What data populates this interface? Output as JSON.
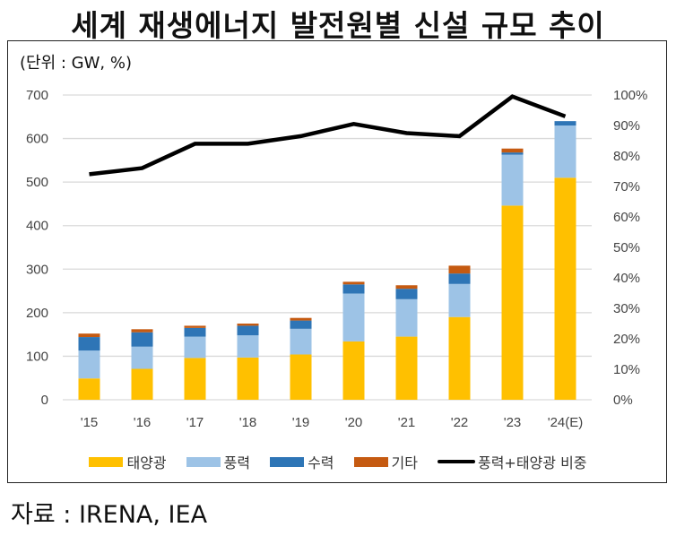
{
  "title": "세계 재생에너지 발전원별 신설 규모 추이",
  "unit_label": "(단위 : GW, %)",
  "source": "자료 : IRENA, IEA",
  "colors": {
    "solar": "#FFC000",
    "wind": "#9DC3E6",
    "hydro": "#2E75B6",
    "other": "#C55A11",
    "line": "#000000",
    "grid": "#D9D9D9"
  },
  "legend": [
    {
      "key": "solar",
      "label": "태양광"
    },
    {
      "key": "wind",
      "label": "풍력"
    },
    {
      "key": "hydro",
      "label": "수력"
    },
    {
      "key": "other",
      "label": "기타"
    },
    {
      "key": "line",
      "label": "풍력+태양광 비중"
    }
  ],
  "chart_data": {
    "type": "bar",
    "subtype": "stacked-bar-with-line",
    "title": "세계 재생에너지 발전원별 신설 규모 추이",
    "categories": [
      "'15",
      "'16",
      "'17",
      "'18",
      "'19",
      "'20",
      "'21",
      "'22",
      "'23",
      "'24(E)"
    ],
    "series": [
      {
        "name": "태양광",
        "key": "solar",
        "axis": "left",
        "values": [
          49,
          71,
          96,
          97,
          104,
          134,
          145,
          190,
          446,
          510
        ]
      },
      {
        "name": "풍력",
        "key": "wind",
        "axis": "left",
        "values": [
          64,
          51,
          49,
          51,
          59,
          110,
          86,
          76,
          117,
          120
        ]
      },
      {
        "name": "수력",
        "key": "hydro",
        "axis": "left",
        "values": [
          31,
          33,
          20,
          22,
          19,
          21,
          24,
          24,
          5,
          10
        ]
      },
      {
        "name": "기타",
        "key": "other",
        "axis": "left",
        "values": [
          8,
          7,
          5,
          5,
          6,
          6,
          8,
          18,
          9,
          0
        ]
      },
      {
        "name": "풍력+태양광 비중",
        "key": "line",
        "type": "line",
        "axis": "right",
        "values": [
          74,
          76,
          84,
          84,
          86.5,
          90.5,
          87.5,
          86.5,
          99.5,
          93
        ]
      }
    ],
    "left_axis": {
      "label": "GW",
      "ylim": [
        0,
        700
      ],
      "ticks": [
        0,
        100,
        200,
        300,
        400,
        500,
        600,
        700
      ]
    },
    "right_axis": {
      "label": "%",
      "ylim": [
        0,
        100
      ],
      "ticks": [
        "0%",
        "10%",
        "20%",
        "30%",
        "40%",
        "50%",
        "60%",
        "70%",
        "80%",
        "90%",
        "100%"
      ]
    },
    "grid": true,
    "legend_position": "bottom"
  }
}
